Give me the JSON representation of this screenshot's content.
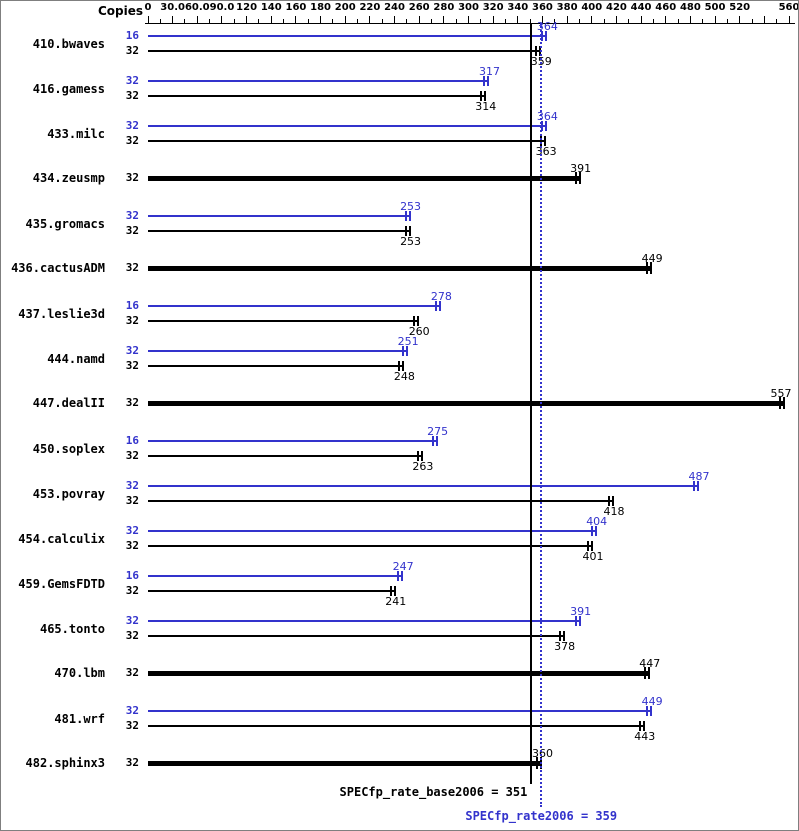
{
  "chart_data": {
    "type": "bar",
    "orientation": "horizontal",
    "title": "",
    "axis": {
      "label": "Copies",
      "range": [
        0,
        560
      ],
      "scale_note": "piecewise linear: 30-unit steps up to 120, then 20-unit steps to 560",
      "ticks": [
        0,
        30,
        60,
        90,
        120,
        140,
        160,
        180,
        200,
        220,
        240,
        260,
        280,
        300,
        320,
        340,
        360,
        380,
        400,
        420,
        440,
        460,
        480,
        500,
        520,
        540,
        560
      ],
      "tick_labels": [
        "0",
        "30.0",
        "60.0",
        "90.0",
        "120",
        "140",
        "160",
        "180",
        "200",
        "220",
        "240",
        "260",
        "280",
        "300",
        "320",
        "340",
        "360",
        "380",
        "400",
        "420",
        "440",
        "460",
        "480",
        "500",
        "520",
        "",
        "560"
      ]
    },
    "colors": {
      "peak": "#3333cc",
      "base": "#000000",
      "axis": "#000000"
    },
    "benchmarks": [
      {
        "name": "410.bwaves",
        "bars": [
          {
            "copies": "16",
            "value": 364,
            "series": "peak"
          },
          {
            "copies": "32",
            "value": 359,
            "series": "base"
          }
        ]
      },
      {
        "name": "416.gamess",
        "bars": [
          {
            "copies": "32",
            "value": 317,
            "series": "peak"
          },
          {
            "copies": "32",
            "value": 314,
            "series": "base"
          }
        ]
      },
      {
        "name": "433.milc",
        "bars": [
          {
            "copies": "32",
            "value": 364,
            "series": "peak"
          },
          {
            "copies": "32",
            "value": 363,
            "series": "base"
          }
        ]
      },
      {
        "name": "434.zeusmp",
        "bars": [
          {
            "copies": "32",
            "value": 391,
            "series": "single"
          }
        ]
      },
      {
        "name": "435.gromacs",
        "bars": [
          {
            "copies": "32",
            "value": 253,
            "series": "peak"
          },
          {
            "copies": "32",
            "value": 253,
            "series": "base"
          }
        ]
      },
      {
        "name": "436.cactusADM",
        "bars": [
          {
            "copies": "32",
            "value": 449,
            "series": "single"
          }
        ]
      },
      {
        "name": "437.leslie3d",
        "bars": [
          {
            "copies": "16",
            "value": 278,
            "series": "peak"
          },
          {
            "copies": "32",
            "value": 260,
            "series": "base"
          }
        ]
      },
      {
        "name": "444.namd",
        "bars": [
          {
            "copies": "32",
            "value": 251,
            "series": "peak"
          },
          {
            "copies": "32",
            "value": 248,
            "series": "base"
          }
        ]
      },
      {
        "name": "447.dealII",
        "bars": [
          {
            "copies": "32",
            "value": 557,
            "series": "single"
          }
        ]
      },
      {
        "name": "450.soplex",
        "bars": [
          {
            "copies": "16",
            "value": 275,
            "series": "peak"
          },
          {
            "copies": "32",
            "value": 263,
            "series": "base"
          }
        ]
      },
      {
        "name": "453.povray",
        "bars": [
          {
            "copies": "32",
            "value": 487,
            "series": "peak"
          },
          {
            "copies": "32",
            "value": 418,
            "series": "base"
          }
        ]
      },
      {
        "name": "454.calculix",
        "bars": [
          {
            "copies": "32",
            "value": 404,
            "series": "peak"
          },
          {
            "copies": "32",
            "value": 401,
            "series": "base"
          }
        ]
      },
      {
        "name": "459.GemsFDTD",
        "bars": [
          {
            "copies": "16",
            "value": 247,
            "series": "peak"
          },
          {
            "copies": "32",
            "value": 241,
            "series": "base"
          }
        ]
      },
      {
        "name": "465.tonto",
        "bars": [
          {
            "copies": "32",
            "value": 391,
            "series": "peak"
          },
          {
            "copies": "32",
            "value": 378,
            "series": "base"
          }
        ]
      },
      {
        "name": "470.lbm",
        "bars": [
          {
            "copies": "32",
            "value": 447,
            "series": "single"
          }
        ]
      },
      {
        "name": "481.wrf",
        "bars": [
          {
            "copies": "32",
            "value": 449,
            "series": "peak"
          },
          {
            "copies": "32",
            "value": 443,
            "series": "base"
          }
        ]
      },
      {
        "name": "482.sphinx3",
        "bars": [
          {
            "copies": "32",
            "value": 360,
            "series": "single"
          }
        ]
      }
    ],
    "reference_lines": [
      {
        "label": "SPECfp_rate_base2006 = 351",
        "value": 351,
        "style": "solid",
        "color": "#000000"
      },
      {
        "label": "SPECfp_rate2006 = 359",
        "value": 359,
        "style": "dotted",
        "color": "#3333cc"
      }
    ]
  }
}
